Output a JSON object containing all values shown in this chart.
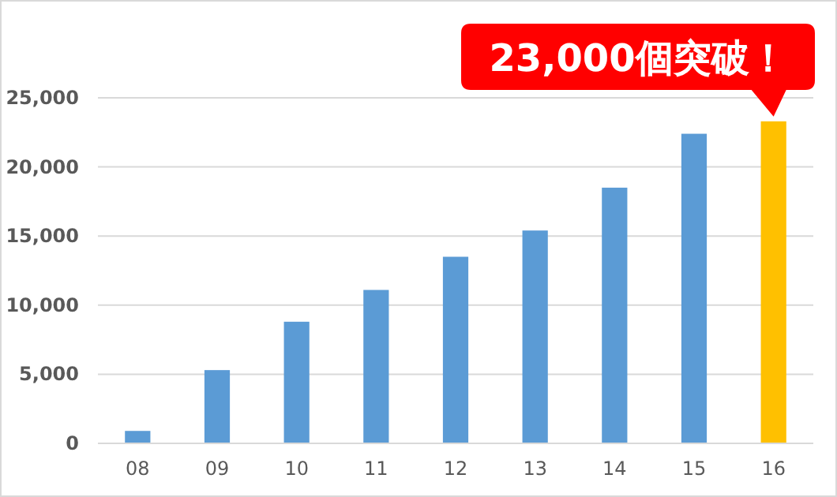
{
  "chart_data": {
    "type": "bar",
    "categories": [
      "08",
      "09",
      "10",
      "11",
      "12",
      "13",
      "14",
      "15",
      "16"
    ],
    "values": [
      900,
      5300,
      8800,
      11100,
      13500,
      15400,
      18500,
      22400,
      23300
    ],
    "colors": [
      "#5b9bd5",
      "#5b9bd5",
      "#5b9bd5",
      "#5b9bd5",
      "#5b9bd5",
      "#5b9bd5",
      "#5b9bd5",
      "#5b9bd5",
      "#ffc000"
    ],
    "ylim": [
      0,
      25000
    ],
    "yticks": [
      {
        "value": 0,
        "label": "0"
      },
      {
        "value": 5000,
        "label": "5,000"
      },
      {
        "value": 10000,
        "label": "10,000"
      },
      {
        "value": 15000,
        "label": "15,000"
      },
      {
        "value": 20000,
        "label": "20,000"
      },
      {
        "value": 25000,
        "label": "25,000"
      }
    ],
    "grid": "y",
    "annotations": [
      {
        "text": "23,000個突破！",
        "x": "16",
        "y": 23300
      }
    ]
  }
}
